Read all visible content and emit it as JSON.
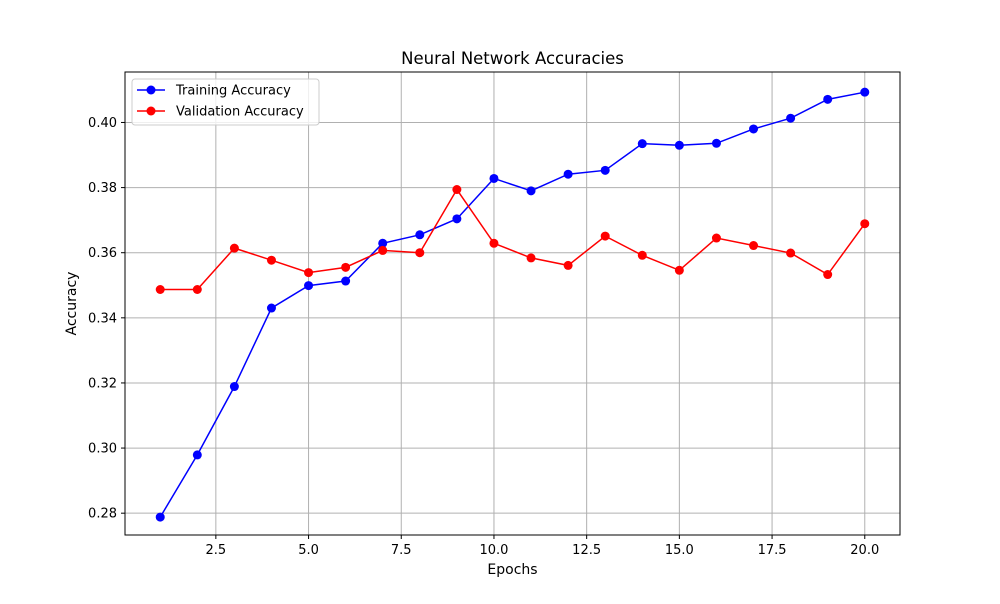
{
  "chart_data": {
    "type": "line",
    "title": "Neural Network Accuracies",
    "xlabel": "Epochs",
    "ylabel": "Accuracy",
    "xlim": [
      0.05,
      20.95
    ],
    "ylim": [
      0.2733,
      0.4155
    ],
    "xticks": [
      2.5,
      5.0,
      7.5,
      10.0,
      12.5,
      15.0,
      17.5,
      20.0
    ],
    "xtick_labels": [
      "2.5",
      "5.0",
      "7.5",
      "10.0",
      "12.5",
      "15.0",
      "17.5",
      "20.0"
    ],
    "yticks": [
      0.28,
      0.3,
      0.32,
      0.34,
      0.36,
      0.38,
      0.4
    ],
    "ytick_labels": [
      "0.28",
      "0.30",
      "0.32",
      "0.34",
      "0.36",
      "0.38",
      "0.40"
    ],
    "grid": true,
    "legend_position": "top-left",
    "x": [
      1,
      2,
      3,
      4,
      5,
      6,
      7,
      8,
      9,
      10,
      11,
      12,
      13,
      14,
      15,
      16,
      17,
      18,
      19,
      20
    ],
    "series": [
      {
        "name": "Training Accuracy",
        "color": "#0000ff",
        "values": [
          0.2788,
          0.2979,
          0.3189,
          0.343,
          0.3499,
          0.3513,
          0.3629,
          0.3655,
          0.3704,
          0.3828,
          0.379,
          0.3841,
          0.3853,
          0.3935,
          0.393,
          0.3936,
          0.398,
          0.4013,
          0.4071,
          0.4093
        ]
      },
      {
        "name": "Validation Accuracy",
        "color": "#ff0000",
        "values": [
          0.3487,
          0.3487,
          0.3614,
          0.3577,
          0.3539,
          0.3555,
          0.3607,
          0.36,
          0.3794,
          0.3629,
          0.3584,
          0.3561,
          0.3651,
          0.3592,
          0.3546,
          0.3645,
          0.3622,
          0.3599,
          0.3533,
          0.3689
        ]
      }
    ]
  }
}
